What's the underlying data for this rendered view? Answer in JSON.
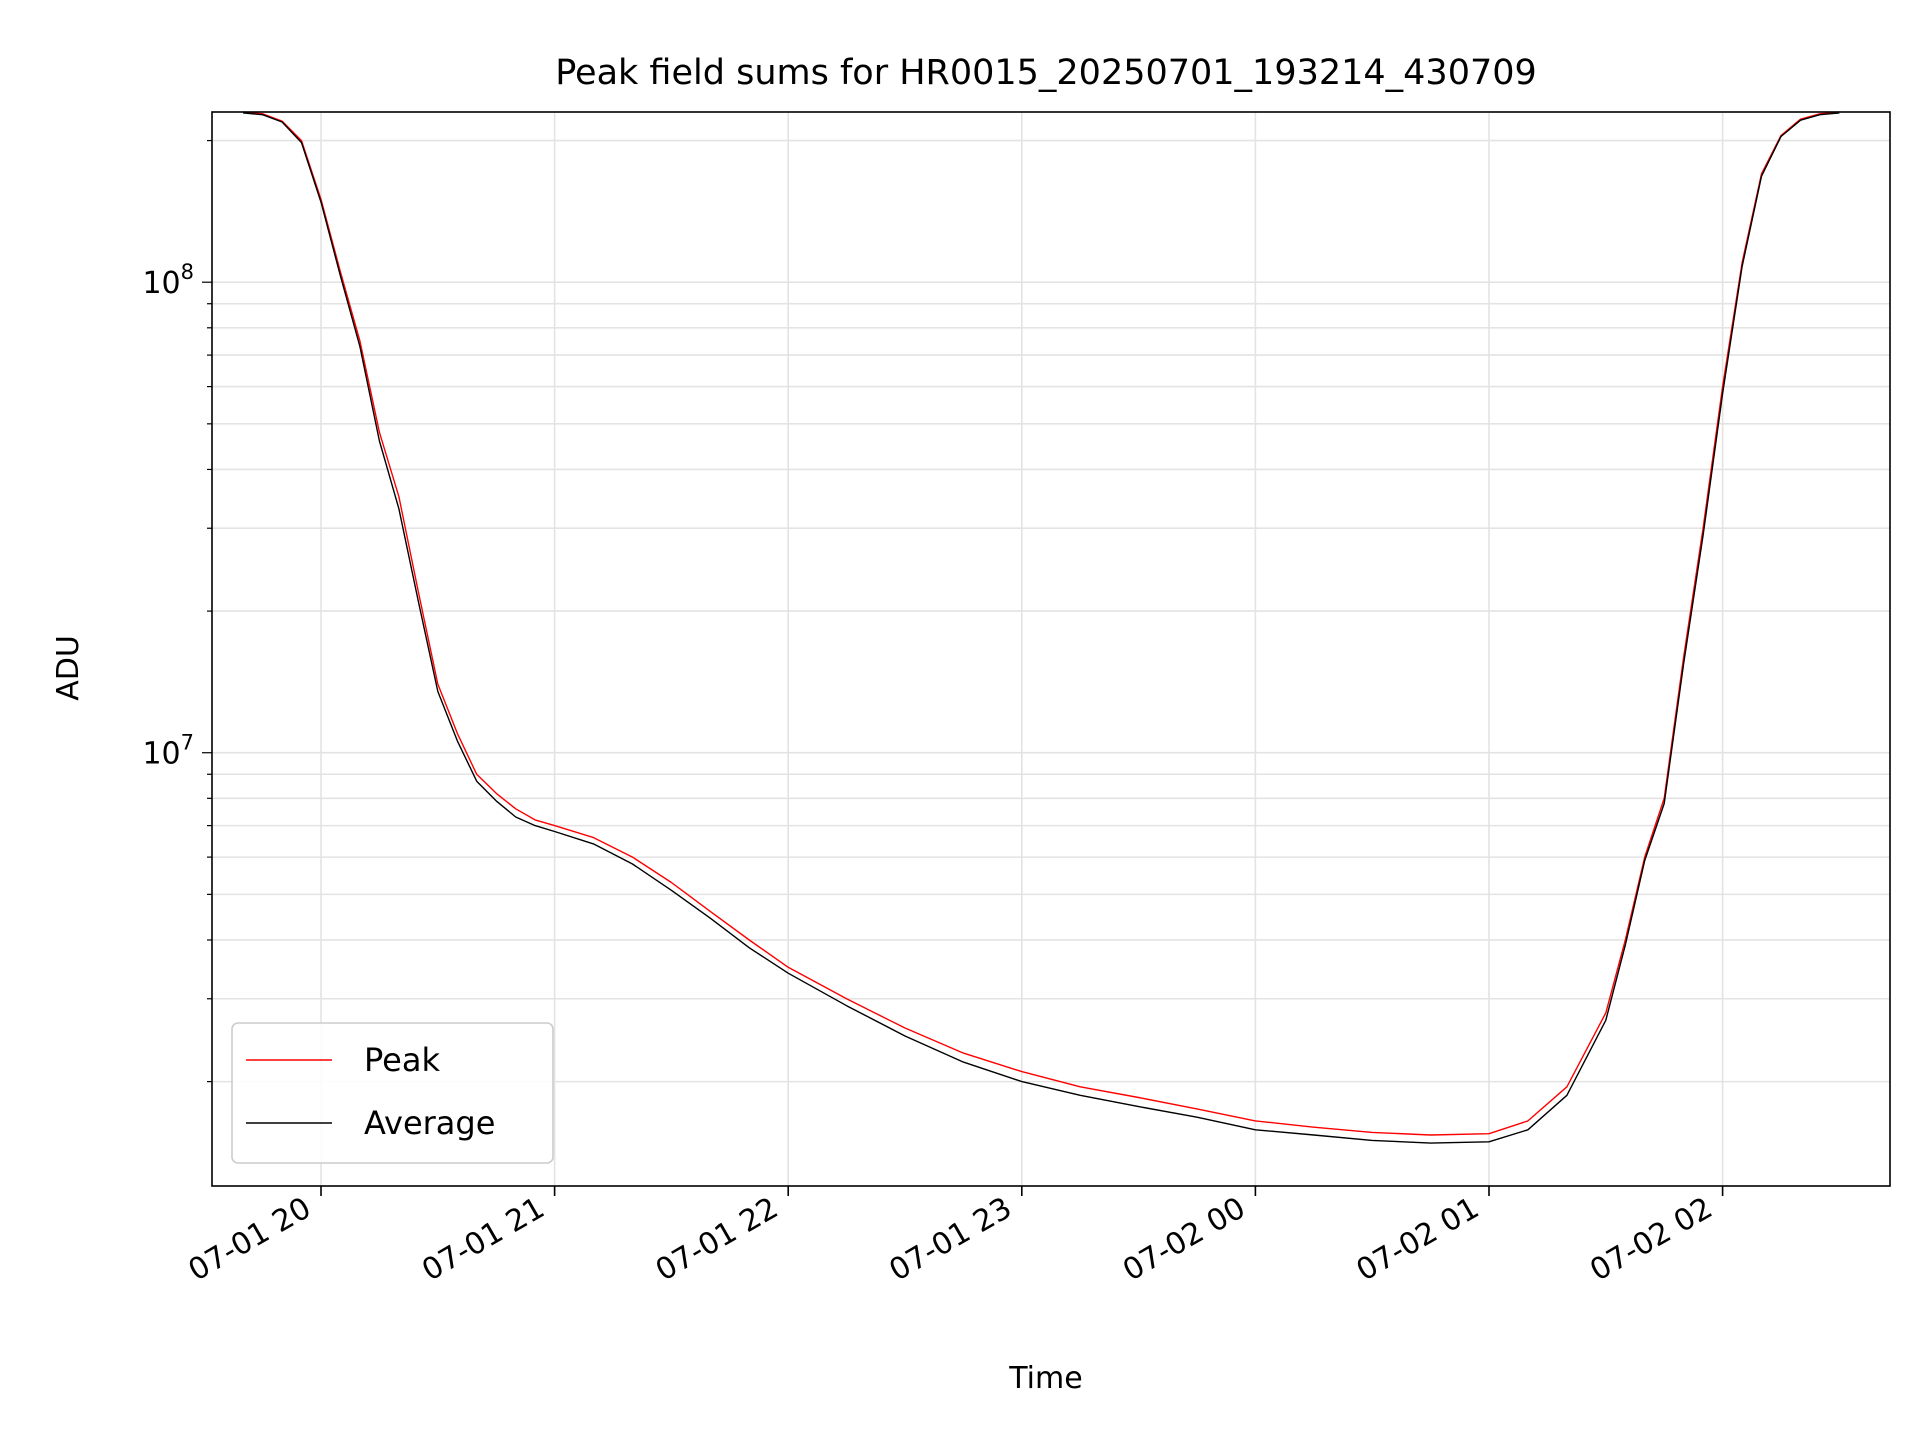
{
  "chart_data": {
    "type": "line",
    "title": "Peak field sums for HR0015_20250701_193214_430709",
    "xlabel": "Time",
    "ylabel": "ADU",
    "xscale": "time",
    "yscale": "log",
    "grid": true,
    "legend_position": "lower-left",
    "xlim": [
      "2025-07-01 19:32",
      "2025-07-02 02:43"
    ],
    "ylim": [
      1200000,
      230000000
    ],
    "x_ticks": [
      {
        "value": "2025-07-01 20:00",
        "label": "07-01 20"
      },
      {
        "value": "2025-07-01 21:00",
        "label": "07-01 21"
      },
      {
        "value": "2025-07-01 22:00",
        "label": "07-01 22"
      },
      {
        "value": "2025-07-01 23:00",
        "label": "07-01 23"
      },
      {
        "value": "2025-07-02 00:00",
        "label": "07-02 00"
      },
      {
        "value": "2025-07-02 01:00",
        "label": "07-02 01"
      },
      {
        "value": "2025-07-02 02:00",
        "label": "07-02 02"
      }
    ],
    "y_ticks": [
      {
        "value": 10000000,
        "base": "10",
        "exp": "7"
      },
      {
        "value": 100000000,
        "base": "10",
        "exp": "8"
      }
    ],
    "series": [
      {
        "name": "Peak",
        "color": "#ff0000",
        "x": [
          "2025-07-01 19:40",
          "2025-07-01 19:45",
          "2025-07-01 19:50",
          "2025-07-01 19:55",
          "2025-07-01 20:00",
          "2025-07-01 20:05",
          "2025-07-01 20:10",
          "2025-07-01 20:15",
          "2025-07-01 20:20",
          "2025-07-01 20:25",
          "2025-07-01 20:30",
          "2025-07-01 20:35",
          "2025-07-01 20:40",
          "2025-07-01 20:45",
          "2025-07-01 20:50",
          "2025-07-01 20:55",
          "2025-07-01 21:00",
          "2025-07-01 21:10",
          "2025-07-01 21:20",
          "2025-07-01 21:30",
          "2025-07-01 21:40",
          "2025-07-01 21:50",
          "2025-07-01 22:00",
          "2025-07-01 22:15",
          "2025-07-01 22:30",
          "2025-07-01 22:45",
          "2025-07-01 23:00",
          "2025-07-01 23:15",
          "2025-07-01 23:30",
          "2025-07-01 23:45",
          "2025-07-02 00:00",
          "2025-07-02 00:15",
          "2025-07-02 00:30",
          "2025-07-02 00:45",
          "2025-07-02 01:00",
          "2025-07-02 01:10",
          "2025-07-02 01:20",
          "2025-07-02 01:30",
          "2025-07-02 01:35",
          "2025-07-02 01:40",
          "2025-07-02 01:45",
          "2025-07-02 01:50",
          "2025-07-02 01:55",
          "2025-07-02 02:00",
          "2025-07-02 02:05",
          "2025-07-02 02:10",
          "2025-07-02 02:15",
          "2025-07-02 02:20",
          "2025-07-02 02:25",
          "2025-07-02 02:30"
        ],
        "values": [
          230000000,
          228000000,
          220000000,
          200000000,
          150000000,
          105000000,
          75000000,
          48000000,
          35000000,
          22000000,
          14000000,
          11000000,
          9000000,
          8200000,
          7600000,
          7200000,
          7000000,
          6600000,
          6000000,
          5300000,
          4600000,
          4000000,
          3500000,
          3000000,
          2600000,
          2300000,
          2100000,
          1950000,
          1850000,
          1750000,
          1650000,
          1600000,
          1560000,
          1540000,
          1550000,
          1650000,
          1950000,
          2800000,
          4000000,
          6000000,
          8000000,
          16000000,
          30000000,
          60000000,
          110000000,
          170000000,
          205000000,
          222000000,
          228000000,
          230000000
        ]
      },
      {
        "name": "Average",
        "color": "#000000",
        "x": [
          "2025-07-01 19:40",
          "2025-07-01 19:45",
          "2025-07-01 19:50",
          "2025-07-01 19:55",
          "2025-07-01 20:00",
          "2025-07-01 20:05",
          "2025-07-01 20:10",
          "2025-07-01 20:15",
          "2025-07-01 20:20",
          "2025-07-01 20:25",
          "2025-07-01 20:30",
          "2025-07-01 20:35",
          "2025-07-01 20:40",
          "2025-07-01 20:45",
          "2025-07-01 20:50",
          "2025-07-01 20:55",
          "2025-07-01 21:00",
          "2025-07-01 21:10",
          "2025-07-01 21:20",
          "2025-07-01 21:30",
          "2025-07-01 21:40",
          "2025-07-01 21:50",
          "2025-07-01 22:00",
          "2025-07-01 22:15",
          "2025-07-01 22:30",
          "2025-07-01 22:45",
          "2025-07-01 23:00",
          "2025-07-01 23:15",
          "2025-07-01 23:30",
          "2025-07-01 23:45",
          "2025-07-02 00:00",
          "2025-07-02 00:15",
          "2025-07-02 00:30",
          "2025-07-02 00:45",
          "2025-07-02 01:00",
          "2025-07-02 01:10",
          "2025-07-02 01:20",
          "2025-07-02 01:30",
          "2025-07-02 01:35",
          "2025-07-02 01:40",
          "2025-07-02 01:45",
          "2025-07-02 01:50",
          "2025-07-02 01:55",
          "2025-07-02 02:00",
          "2025-07-02 02:05",
          "2025-07-02 02:10",
          "2025-07-02 02:15",
          "2025-07-02 02:20",
          "2025-07-02 02:25",
          "2025-07-02 02:30"
        ],
        "values": [
          229000000,
          227000000,
          219000000,
          198000000,
          148000000,
          103000000,
          73000000,
          46000000,
          33000000,
          21000000,
          13500000,
          10600000,
          8700000,
          7900000,
          7300000,
          7000000,
          6800000,
          6400000,
          5800000,
          5100000,
          4450000,
          3850000,
          3400000,
          2900000,
          2500000,
          2200000,
          2000000,
          1870000,
          1770000,
          1680000,
          1580000,
          1540000,
          1500000,
          1480000,
          1490000,
          1580000,
          1870000,
          2700000,
          3900000,
          5900000,
          7800000,
          15500000,
          29000000,
          58000000,
          108000000,
          168000000,
          204000000,
          221000000,
          227000000,
          229000000
        ]
      }
    ]
  }
}
